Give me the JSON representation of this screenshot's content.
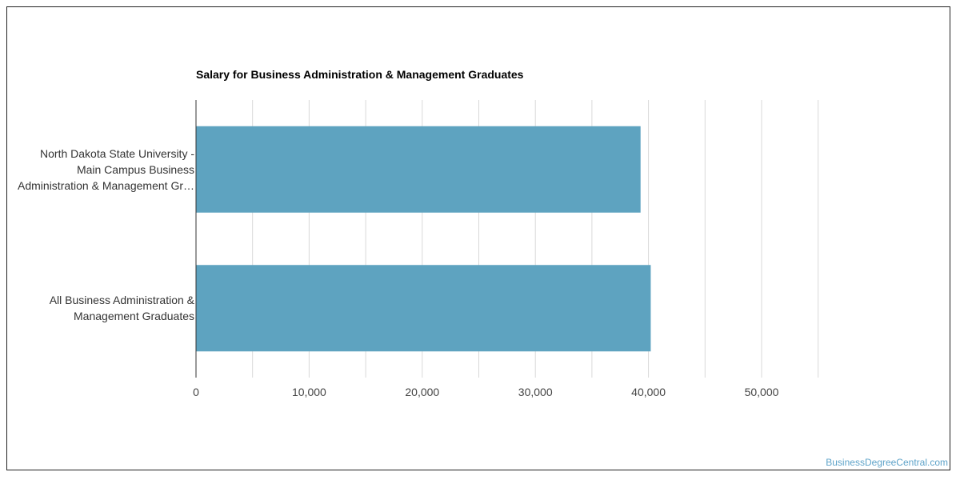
{
  "chart_data": {
    "type": "bar",
    "orientation": "horizontal",
    "title": "Salary for Business Administration & Management Graduates",
    "categories": [
      "North Dakota State University - Main Campus Business Administration & Management Gr…",
      "All Business Administration & Management Graduates"
    ],
    "category_lines": [
      [
        "North Dakota State University -",
        "Main Campus Business",
        "Administration & Management Gr…"
      ],
      [
        "All Business Administration &",
        "Management Graduates"
      ]
    ],
    "values": [
      39300,
      40200
    ],
    "xlim": [
      0,
      55000
    ],
    "x_ticks": [
      0,
      10000,
      20000,
      30000,
      40000,
      50000
    ],
    "x_tick_labels": [
      "0",
      "10,000",
      "20,000",
      "30,000",
      "40,000",
      "50,000"
    ],
    "xlabel": "",
    "ylabel": "",
    "grid": true,
    "legend": "none",
    "bar_color": "#5ea3c0"
  },
  "watermark": "BusinessDegreeCentral.com",
  "colors": {
    "grid": "#d9d9d9",
    "axis": "#333333",
    "tick_text": "#444444",
    "watermark": "#5ea3c9"
  }
}
